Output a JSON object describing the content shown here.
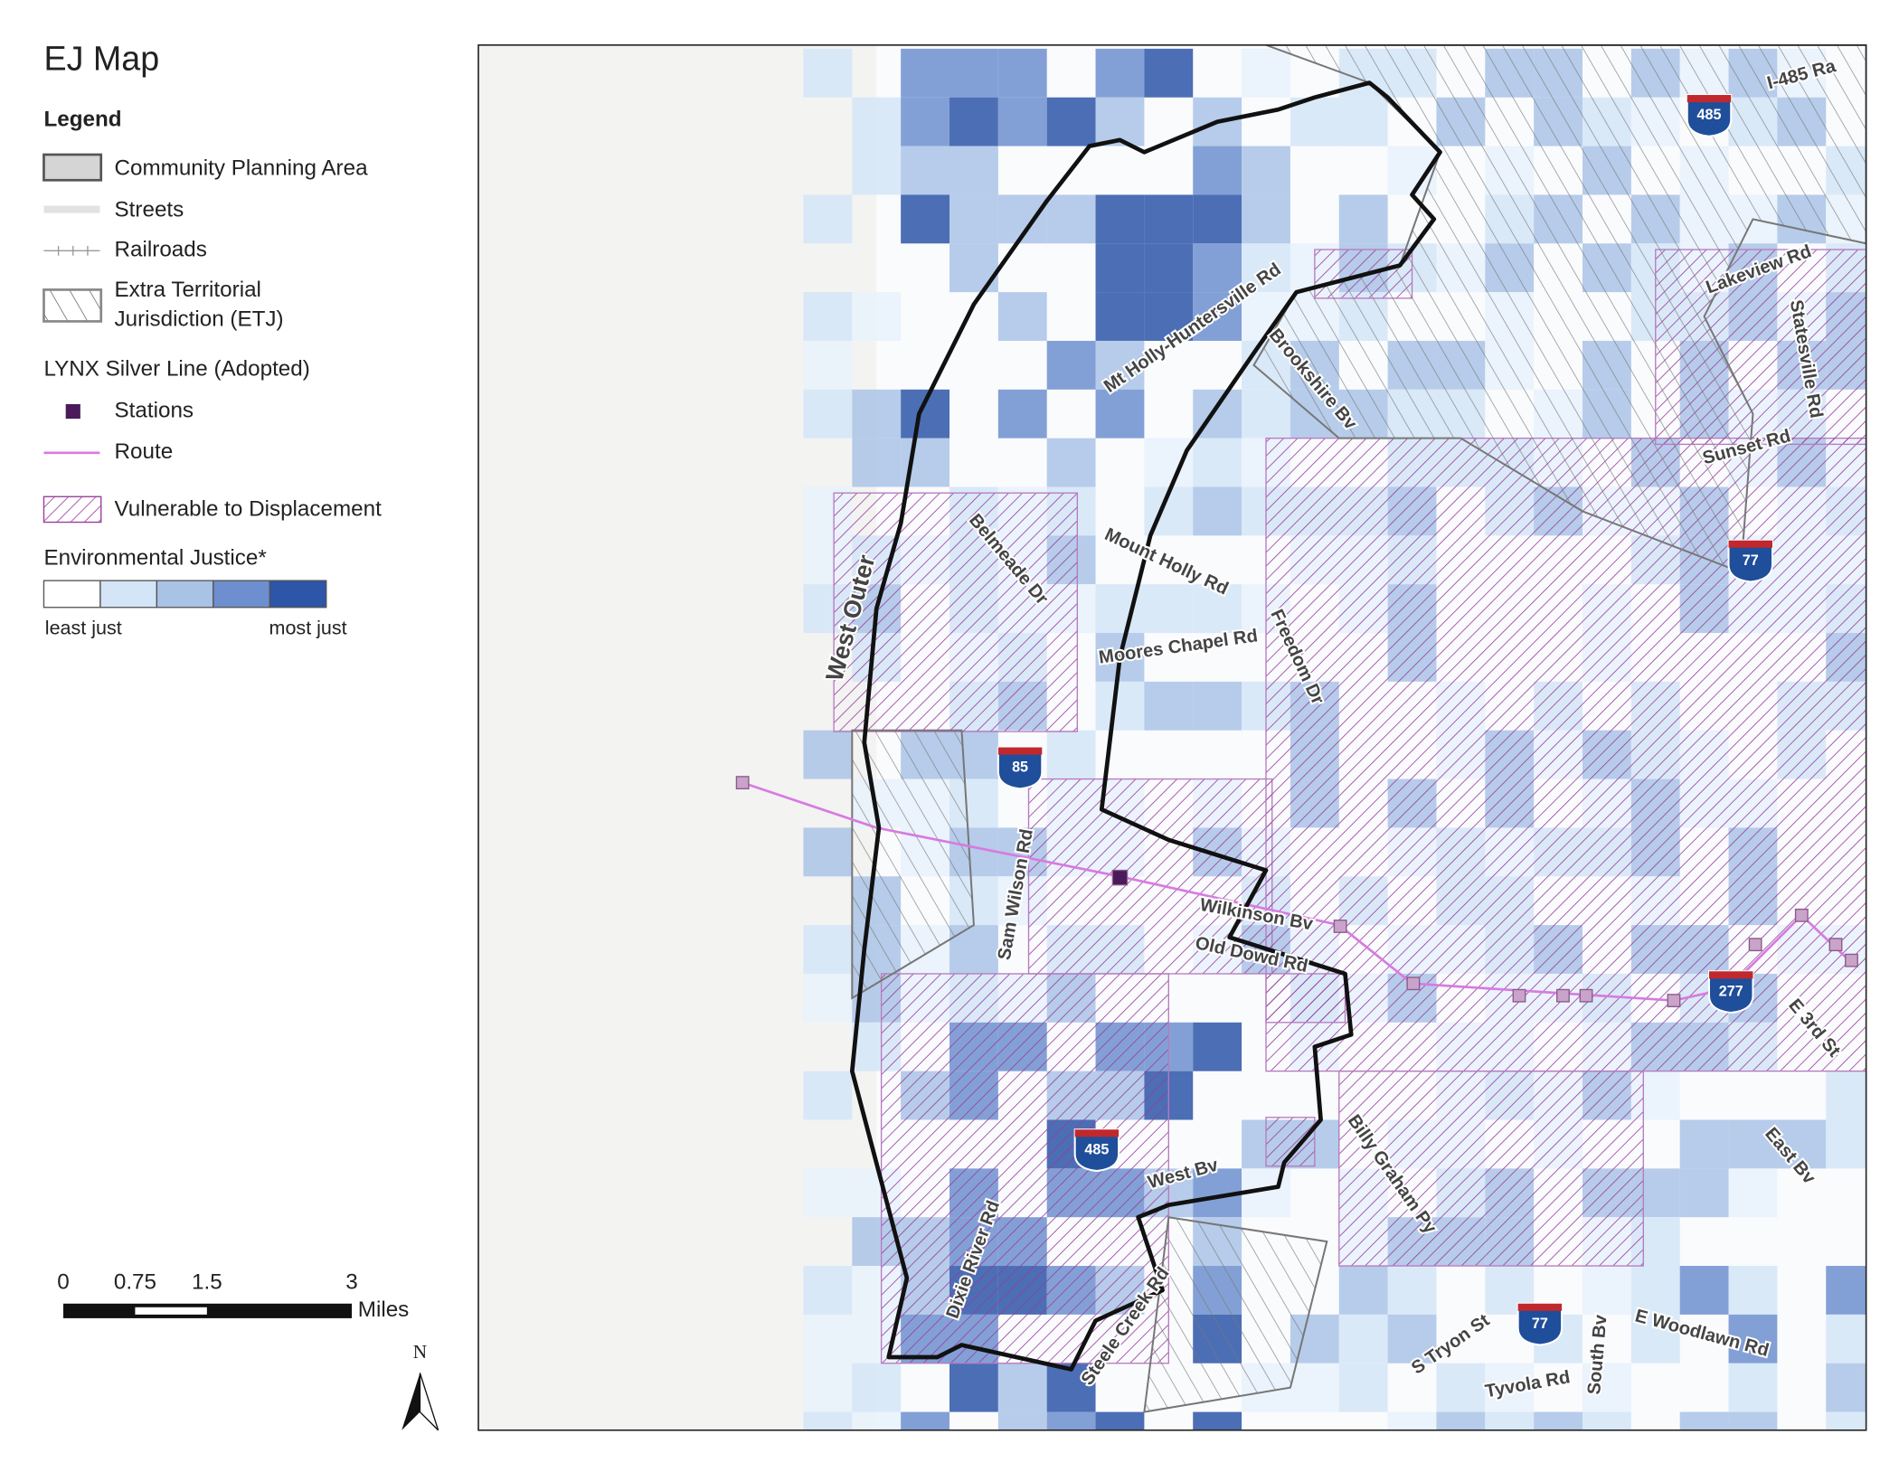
{
  "title": "EJ Map",
  "legend": {
    "title": "Legend",
    "planning_area": "Community Planning Area",
    "streets": "Streets",
    "railroads": "Railroads",
    "etj": [
      "Extra Territorial",
      "Jurisdiction (ETJ)"
    ],
    "silver_line": "LYNX Silver Line (Adopted)",
    "stations": "Stations",
    "route": "Route",
    "vulnerable": "Vulnerable to Displacement",
    "ej_title": "Environmental Justice*",
    "ej_low": "least just",
    "ej_high": "most just"
  },
  "scale_bar": {
    "ticks": [
      0,
      0.75,
      1.5,
      3
    ],
    "unit": "Miles"
  },
  "north": "N",
  "map_labels": [
    "I-485 Ra",
    "Lakeview Rd",
    "Statesville Rd",
    "Sunset Rd",
    "Mt Holly-Huntersville Rd",
    "Brookshire Bv",
    "Mount Holly Rd",
    "Belmeade Dr",
    "Moores Chapel Rd",
    "Freedom Dr",
    "West Outer",
    "Sam Wilson Rd",
    "Wilkinson Bv",
    "Old Dowd Rd",
    "E 3rd St",
    "Billy Graham Py",
    "East Bv",
    "West Bv",
    "Dixie River Rd",
    "Steele Creek Rd",
    "S Tryon St",
    "Tyvola Rd",
    "South Bv",
    "E Woodlawn Rd"
  ],
  "shields": [
    485,
    77,
    85,
    485,
    277,
    77
  ]
}
